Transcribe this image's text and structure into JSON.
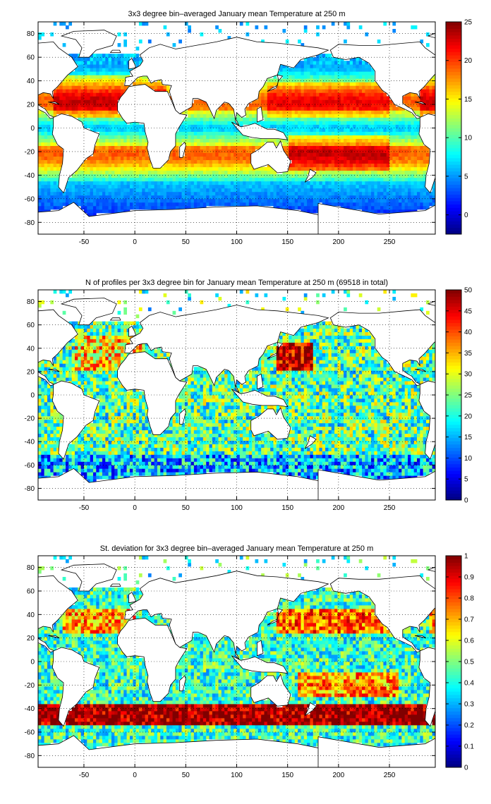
{
  "chart_data": [
    {
      "type": "heatmap",
      "title": "3x3 degree bin–averaged January mean Temperature at 250 m",
      "xlim": [
        -95,
        295
      ],
      "ylim": [
        -90,
        90
      ],
      "x_ticks": [
        "-50",
        "0",
        "50",
        "100",
        "150",
        "200",
        "250"
      ],
      "x_tick_values": [
        -50,
        0,
        50,
        100,
        150,
        200,
        250
      ],
      "y_ticks": [
        "80",
        "60",
        "40",
        "20",
        "0",
        "-20",
        "-40",
        "-60",
        "-80"
      ],
      "y_tick_values": [
        80,
        60,
        40,
        20,
        0,
        -20,
        -40,
        -60,
        -80
      ],
      "colorbar": {
        "min": -2.5,
        "max": 25,
        "ticks": [
          "25",
          "20",
          "15",
          "10",
          "5",
          "0"
        ],
        "tick_values": [
          25,
          20,
          15,
          10,
          5,
          0
        ]
      },
      "grid": true,
      "field": "temperature"
    },
    {
      "type": "heatmap",
      "title": "N of profiles per 3x3 degree bin for January mean Temperature at 250 m (69518 in total)",
      "xlim": [
        -95,
        295
      ],
      "ylim": [
        -90,
        90
      ],
      "x_ticks": [
        "-50",
        "0",
        "50",
        "100",
        "150",
        "200",
        "250"
      ],
      "x_tick_values": [
        -50,
        0,
        50,
        100,
        150,
        200,
        250
      ],
      "y_ticks": [
        "80",
        "60",
        "40",
        "20",
        "0",
        "-20",
        "-40",
        "-60",
        "-80"
      ],
      "y_tick_values": [
        80,
        60,
        40,
        20,
        0,
        -20,
        -40,
        -60,
        -80
      ],
      "colorbar": {
        "min": 0,
        "max": 50,
        "ticks": [
          "50",
          "45",
          "40",
          "35",
          "30",
          "25",
          "20",
          "15",
          "10",
          "5",
          "0"
        ],
        "tick_values": [
          50,
          45,
          40,
          35,
          30,
          25,
          20,
          15,
          10,
          5,
          0
        ]
      },
      "grid": true,
      "field": "count"
    },
    {
      "type": "heatmap",
      "title": "St. deviation for 3x3 degree bin–averaged January mean Temperature at 250 m",
      "xlim": [
        -95,
        295
      ],
      "ylim": [
        -90,
        90
      ],
      "x_ticks": [
        "-50",
        "0",
        "50",
        "100",
        "150",
        "200",
        "250"
      ],
      "x_tick_values": [
        -50,
        0,
        50,
        100,
        150,
        200,
        250
      ],
      "y_ticks": [
        "80",
        "60",
        "40",
        "20",
        "0",
        "-20",
        "-40",
        "-60",
        "-80"
      ],
      "y_tick_values": [
        80,
        60,
        40,
        20,
        0,
        -20,
        -40,
        -60,
        -80
      ],
      "colorbar": {
        "min": 0,
        "max": 1,
        "ticks": [
          "1",
          "0.9",
          "0.8",
          "0.7",
          "0.6",
          "0.5",
          "0.4",
          "0.3",
          "0.2",
          "0.1",
          "0"
        ],
        "tick_values": [
          1,
          0.9,
          0.8,
          0.7,
          0.6,
          0.5,
          0.4,
          0.3,
          0.2,
          0.1,
          0
        ]
      },
      "grid": true,
      "field": "stdev"
    }
  ]
}
